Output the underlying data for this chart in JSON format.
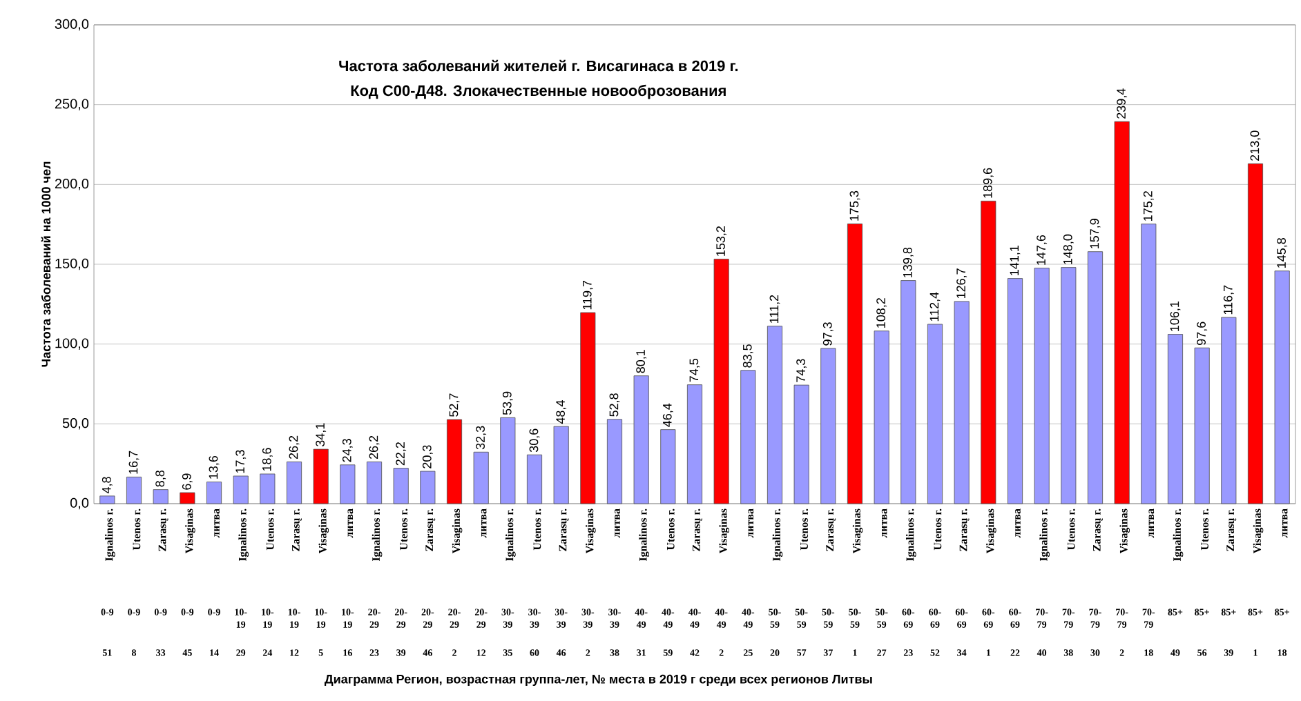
{
  "chart_data": {
    "type": "bar",
    "title": "Частота заболеваний жителей г. Висагинаса в 2019 г.",
    "subtitle": "Код С00-Д48. Злокачественные новооброзования",
    "ylabel": "Частота заболеваний на 1000 чел",
    "categories": [
      "Ignalinos г.",
      "Utenos г.",
      "Zarasų г.",
      "Visaginas",
      "литва",
      "Ignalinos г.",
      "Utenos г.",
      "Zarasų г.",
      "Visaginas",
      "литва",
      "Ignalinos г.",
      "Utenos г.",
      "Zarasų г.",
      "Visaginas",
      "литва",
      "Ignalinos г.",
      "Utenos г.",
      "Zarasų г.",
      "Visaginas",
      "литва",
      "Ignalinos г.",
      "Utenos г.",
      "Zarasų г.",
      "Visaginas",
      "литва",
      "Ignalinos г.",
      "Utenos г.",
      "Zarasų г.",
      "Visaginas",
      "литва",
      "Ignalinos г.",
      "Utenos г.",
      "Zarasų г.",
      "Visaginas",
      "литва",
      "Ignalinos г.",
      "Utenos г.",
      "Zarasų г.",
      "Visaginas",
      "литва",
      "Ignalinos г.",
      "Utenos г.",
      "Zarasų г.",
      "Visaginas",
      "литва"
    ],
    "values": [
      4.8,
      16.7,
      8.8,
      6.9,
      13.6,
      17.3,
      18.6,
      26.2,
      34.1,
      24.3,
      26.2,
      22.2,
      20.3,
      52.7,
      32.3,
      53.9,
      30.6,
      48.4,
      119.7,
      52.8,
      80.1,
      46.4,
      74.5,
      153.2,
      83.5,
      111.2,
      74.3,
      97.3,
      175.3,
      108.2,
      139.8,
      112.4,
      126.7,
      189.6,
      141.1,
      147.6,
      148.0,
      157.9,
      239.4,
      175.2,
      106.1,
      97.6,
      116.7,
      213.0,
      145.8
    ],
    "value_labels": [
      "4,8",
      "16,7",
      "8,8",
      "6,9",
      "13,6",
      "17,3",
      "18,6",
      "26,2",
      "34,1",
      "24,3",
      "26,2",
      "22,2",
      "20,3",
      "52,7",
      "32,3",
      "53,9",
      "30,6",
      "48,4",
      "119,7",
      "52,8",
      "80,1",
      "46,4",
      "74,5",
      "153,2",
      "83,5",
      "111,2",
      "74,3",
      "97,3",
      "175,3",
      "108,2",
      "139,8",
      "112,4",
      "126,7",
      "189,6",
      "141,1",
      "147,6",
      "148,0",
      "157,9",
      "239,4",
      "175,2",
      "106,1",
      "97,6",
      "116,7",
      "213,0",
      "145,8"
    ],
    "colors": [
      "#9999ff",
      "#9999ff",
      "#9999ff",
      "#ff0000",
      "#9999ff",
      "#9999ff",
      "#9999ff",
      "#9999ff",
      "#ff0000",
      "#9999ff",
      "#9999ff",
      "#9999ff",
      "#9999ff",
      "#ff0000",
      "#9999ff",
      "#9999ff",
      "#9999ff",
      "#9999ff",
      "#ff0000",
      "#9999ff",
      "#9999ff",
      "#9999ff",
      "#9999ff",
      "#ff0000",
      "#9999ff",
      "#9999ff",
      "#9999ff",
      "#9999ff",
      "#ff0000",
      "#9999ff",
      "#9999ff",
      "#9999ff",
      "#9999ff",
      "#ff0000",
      "#9999ff",
      "#9999ff",
      "#9999ff",
      "#9999ff",
      "#ff0000",
      "#9999ff",
      "#9999ff",
      "#9999ff",
      "#9999ff",
      "#ff0000",
      "#9999ff"
    ],
    "annotations": [
      "0-9",
      "0-9",
      "0-9",
      "0-9",
      "0-9",
      "10-19",
      "10-19",
      "10-19",
      "10-19",
      "10-19",
      "20-29",
      "20-29",
      "20-29",
      "20-29",
      "20-29",
      "30-39",
      "30-39",
      "30-39",
      "30-39",
      "30-39",
      "40-49",
      "40-49",
      "40-49",
      "40-49",
      "40-49",
      "50-59",
      "50-59",
      "50-59",
      "50-59",
      "50-59",
      "60-69",
      "60-69",
      "60-69",
      "60-69",
      "60-69",
      "70-79",
      "70-79",
      "70-79",
      "70-79",
      "70-79",
      "85+",
      "85+",
      "85+",
      "85+",
      "85+",
      "51",
      "8",
      "33",
      "45",
      "14",
      "29",
      "24",
      "12",
      "5",
      "16",
      "23",
      "39",
      "46",
      "2",
      "12",
      "35",
      "60",
      "46",
      "2",
      "38",
      "31",
      "59",
      "42",
      "2",
      "25",
      "20",
      "57",
      "37",
      "1",
      "27",
      "23",
      "52",
      "34",
      "1",
      "22",
      "40",
      "38",
      "30",
      "2",
      "18",
      "49",
      "56",
      "39",
      "1",
      "18",
      "Диаграмма   Регион, возрастная группа-лет, № места в 2019 г среди всех регионов Литвы"
    ],
    "ylim": [
      0,
      300
    ],
    "yticks": [
      {
        "value": 0,
        "label": "0,0"
      },
      {
        "value": 50,
        "label": "50,0"
      },
      {
        "value": 100,
        "label": "100,0"
      },
      {
        "value": 150,
        "label": "150,0"
      },
      {
        "value": 200,
        "label": "200,0"
      },
      {
        "value": 250,
        "label": "250,0"
      },
      {
        "value": 300,
        "label": "300,0"
      }
    ],
    "grid": "y"
  }
}
